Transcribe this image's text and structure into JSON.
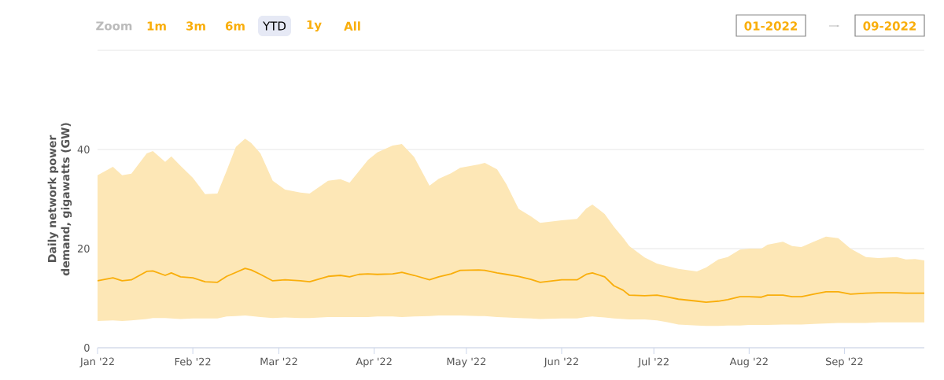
{
  "chart_data": {
    "type": "line",
    "ylabel": "Daily network power demand, gigawatts (GW)",
    "annotations": [
      "Zoom",
      "1m",
      "3m",
      "6m",
      "YTD",
      "1y",
      "All",
      "01-2022",
      "09-2022"
    ],
    "x": [
      "2022-01-01",
      "2022-01-06",
      "2022-01-09",
      "2022-01-12",
      "2022-01-17",
      "2022-01-19",
      "2022-01-23",
      "2022-01-25",
      "2022-01-28",
      "2022-02-01",
      "2022-02-05",
      "2022-02-09",
      "2022-02-12",
      "2022-02-15",
      "2022-02-18",
      "2022-02-20",
      "2022-02-23",
      "2022-02-27",
      "2022-03-03",
      "2022-03-08",
      "2022-03-11",
      "2022-03-17",
      "2022-03-21",
      "2022-03-24",
      "2022-03-27",
      "2022-03-30",
      "2022-04-02",
      "2022-04-07",
      "2022-04-10",
      "2022-04-14",
      "2022-04-19",
      "2022-04-22",
      "2022-04-26",
      "2022-04-29",
      "2022-05-05",
      "2022-05-07",
      "2022-05-11",
      "2022-05-14",
      "2022-05-18",
      "2022-05-22",
      "2022-05-25",
      "2022-06-01",
      "2022-06-06",
      "2022-06-09",
      "2022-06-11",
      "2022-06-15",
      "2022-06-18",
      "2022-06-21",
      "2022-06-23",
      "2022-06-28",
      "2022-07-02",
      "2022-07-05",
      "2022-07-09",
      "2022-07-15",
      "2022-07-18",
      "2022-07-22",
      "2022-07-25",
      "2022-07-29",
      "2022-08-01",
      "2022-08-05",
      "2022-08-07",
      "2022-08-12",
      "2022-08-15",
      "2022-08-18",
      "2022-08-22",
      "2022-08-26",
      "2022-08-30",
      "2022-09-03",
      "2022-09-08",
      "2022-09-12",
      "2022-09-18",
      "2022-09-21",
      "2022-09-24",
      "2022-09-27"
    ],
    "xlim": [
      "2022-01-01",
      "2022-09-27"
    ],
    "xticks": [
      {
        "value": "2022-01-01",
        "label": "Jan '22"
      },
      {
        "value": "2022-02-01",
        "label": "Feb '22"
      },
      {
        "value": "2022-03-01",
        "label": "Mar '22"
      },
      {
        "value": "2022-04-01",
        "label": "Apr '22"
      },
      {
        "value": "2022-05-01",
        "label": "May '22"
      },
      {
        "value": "2022-06-01",
        "label": "Jun '22"
      },
      {
        "value": "2022-07-01",
        "label": "Jul '22"
      },
      {
        "value": "2022-08-01",
        "label": "Aug '22"
      },
      {
        "value": "2022-09-01",
        "label": "Sep '22"
      }
    ],
    "ylim": [
      0,
      60
    ],
    "yticks": [
      0,
      20,
      40,
      {
        "value": 60,
        "label": null
      }
    ],
    "grid": "y",
    "series": [
      {
        "color": "#f9ae0b",
        "values": [
          13.5,
          14.1,
          13.5,
          13.7,
          15.4,
          15.5,
          14.6,
          15.1,
          14.3,
          14.1,
          13.3,
          13.2,
          14.4,
          15.2,
          16.0,
          15.7,
          14.8,
          13.5,
          13.7,
          13.5,
          13.3,
          14.4,
          14.6,
          14.3,
          14.8,
          14.9,
          14.8,
          14.9,
          15.2,
          14.6,
          13.7,
          14.3,
          14.9,
          15.6,
          15.7,
          15.6,
          15.1,
          14.8,
          14.4,
          13.8,
          13.2,
          13.7,
          13.7,
          14.8,
          15.1,
          14.3,
          12.5,
          11.6,
          10.6,
          10.5,
          10.6,
          10.3,
          9.8,
          9.4,
          9.2,
          9.4,
          9.7,
          10.3,
          10.3,
          10.2,
          10.6,
          10.6,
          10.3,
          10.3,
          10.8,
          11.3,
          11.3,
          10.8,
          11.0,
          11.1,
          11.1,
          11.0,
          11.0,
          11.0
        ],
        "lower": [
          5.4,
          5.5,
          5.4,
          5.5,
          5.8,
          6.0,
          6.0,
          5.9,
          5.8,
          5.9,
          5.9,
          5.9,
          6.3,
          6.4,
          6.5,
          6.4,
          6.2,
          6.0,
          6.1,
          6.0,
          6.0,
          6.2,
          6.2,
          6.2,
          6.2,
          6.2,
          6.3,
          6.3,
          6.2,
          6.3,
          6.4,
          6.5,
          6.5,
          6.5,
          6.4,
          6.4,
          6.2,
          6.1,
          6.0,
          5.9,
          5.8,
          5.9,
          5.9,
          6.2,
          6.3,
          6.1,
          5.9,
          5.8,
          5.7,
          5.7,
          5.5,
          5.2,
          4.7,
          4.5,
          4.4,
          4.4,
          4.5,
          4.5,
          4.6,
          4.6,
          4.6,
          4.7,
          4.7,
          4.7,
          4.8,
          4.9,
          5.0,
          5.0,
          5.0,
          5.1,
          5.1,
          5.1,
          5.1,
          5.1
        ],
        "upper": [
          34.8,
          36.5,
          34.8,
          35.1,
          39.2,
          39.7,
          37.5,
          38.6,
          36.7,
          34.3,
          31.0,
          31.1,
          35.7,
          40.5,
          42.2,
          41.3,
          39.2,
          33.7,
          31.9,
          31.3,
          31.1,
          33.7,
          34.0,
          33.3,
          35.6,
          37.9,
          39.4,
          40.8,
          41.1,
          38.5,
          32.7,
          34.1,
          35.2,
          36.3,
          37.0,
          37.3,
          36.0,
          33.0,
          28.0,
          26.5,
          25.2,
          25.7,
          26.0,
          28.1,
          28.9,
          27.0,
          24.4,
          22.2,
          20.5,
          18.2,
          17.0,
          16.5,
          15.9,
          15.4,
          16.2,
          17.8,
          18.3,
          19.8,
          20.0,
          20.0,
          20.8,
          21.4,
          20.5,
          20.3,
          21.4,
          22.4,
          22.1,
          20.0,
          18.3,
          18.1,
          18.3,
          17.8,
          17.9,
          17.6
        ]
      }
    ]
  }
}
